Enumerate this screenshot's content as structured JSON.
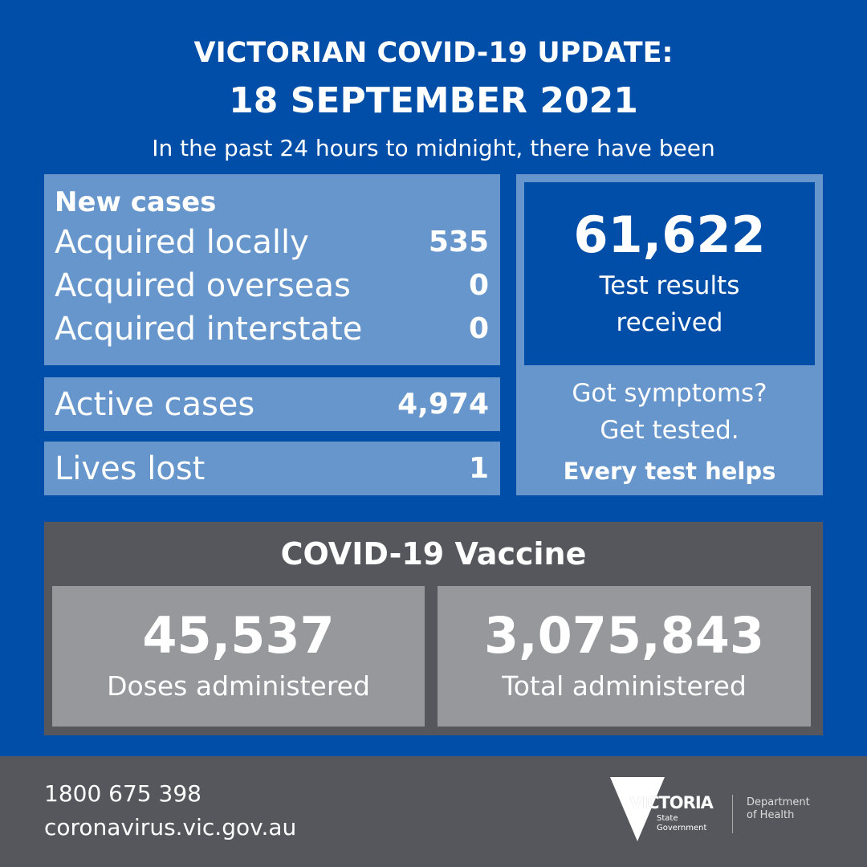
{
  "header": {
    "title": "VICTORIAN COVID-19 UPDATE:",
    "date": "18 SEPTEMBER 2021",
    "subtitle": "In the past 24 hours to midnight, there have been"
  },
  "new_cases": {
    "heading": "New cases",
    "rows": [
      {
        "label": "Acquired locally",
        "value": "535"
      },
      {
        "label": "Acquired overseas",
        "value": "0"
      },
      {
        "label": "Acquired interstate",
        "value": "0"
      }
    ]
  },
  "active": {
    "label": "Active cases",
    "value": "4,974"
  },
  "lives": {
    "label": "Lives lost",
    "value": "1"
  },
  "tests": {
    "value": "61,622",
    "label1": "Test results",
    "label2": "received",
    "cta1": "Got symptoms?",
    "cta2": "Get tested.",
    "cta3": "Every test helps"
  },
  "vaccine": {
    "title": "COVID-19 Vaccine",
    "doses_value": "45,537",
    "doses_label": "Doses administered",
    "total_value": "3,075,843",
    "total_label": "Total administered"
  },
  "footer": {
    "phone": "1800 675 398",
    "website": "coronavirus.vic.gov.au",
    "logo_text": "VICTORIA",
    "logo_sub1": "State",
    "logo_sub2": "Government",
    "dept1": "Department",
    "dept2": "of Health"
  },
  "colors": {
    "background": "#004ea8",
    "panel": "#6696cc",
    "dark_gray": "#55575c",
    "light_gray": "#97989c"
  }
}
